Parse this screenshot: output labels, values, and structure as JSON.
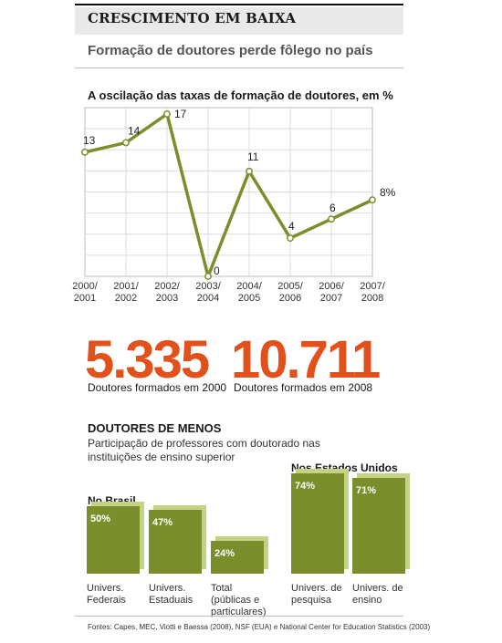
{
  "header": {
    "headline": "CRESCIMENTO EM BAIXA",
    "subtitle": "Formação de doutores perde fôlego no país"
  },
  "chart_data": {
    "type": "line",
    "title": "A oscilação das taxas de formação de doutores, em %",
    "categories": [
      "2000/2001",
      "2001/2002",
      "2002/2003",
      "2003/2004",
      "2004/2005",
      "2005/2006",
      "2006/2007",
      "2007/2008"
    ],
    "category_lines": [
      [
        "2000/",
        "2001"
      ],
      [
        "2001/",
        "2002"
      ],
      [
        "2002/",
        "2003"
      ],
      [
        "2003/",
        "2004"
      ],
      [
        "2004/",
        "2005"
      ],
      [
        "2005/",
        "2006"
      ],
      [
        "2006/",
        "2007"
      ],
      [
        "2007/",
        "2008"
      ]
    ],
    "values": [
      13,
      14,
      17,
      0,
      11,
      4,
      6,
      8
    ],
    "data_labels": [
      "13",
      "14",
      "17",
      "0",
      "11",
      "4",
      "6",
      "8%"
    ],
    "ylim": [
      0,
      17
    ],
    "grid": true,
    "color": "#7a8f2c"
  },
  "totals": [
    {
      "number": "5.335",
      "label": "Doutores formados em 2000"
    },
    {
      "number": "10.711",
      "label": "Doutores formados em 2008"
    }
  ],
  "section": {
    "title": "DOUTORES DE MENOS",
    "text": "Participação de professores com doutorado nas instituições de ensino superior"
  },
  "bars": {
    "type": "bar",
    "groups": [
      {
        "title": "No Brasil",
        "items": [
          {
            "value": 50,
            "label_value": "50%",
            "label": "Univers. Federais"
          },
          {
            "value": 47,
            "label_value": "47%",
            "label": "Univers. Estaduais"
          },
          {
            "value": 24,
            "label_value": "24%",
            "label": "Total (públicas e particulares)"
          }
        ]
      },
      {
        "title": "Nos Estados Unidos",
        "items": [
          {
            "value": 74,
            "label_value": "74%",
            "label": "Univers. de pesquisa"
          },
          {
            "value": 71,
            "label_value": "71%",
            "label": "Univers. de ensino"
          }
        ]
      }
    ],
    "bar_color": "#7a8f2c",
    "shadow_color": "#c3d383"
  },
  "source": "Fontes: Capes, MEC, Viotti e Baessa (2008), NSF (EUA) e National Center for Education Statistics (2003)"
}
